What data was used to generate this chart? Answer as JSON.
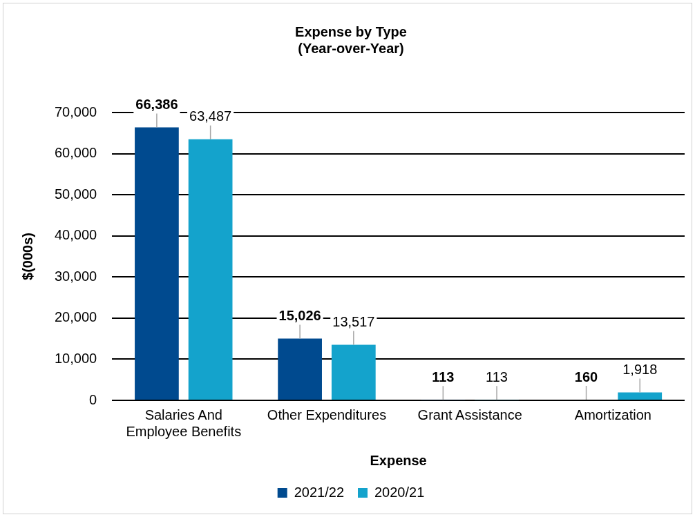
{
  "chart_data": {
    "type": "bar",
    "title": "Expense by Type\n(Year-over-Year)",
    "xlabel": "Expense",
    "ylabel": "$(000s)",
    "categories": [
      "Salaries And Employee Benefits",
      "Other Expenditures",
      "Grant Assistance",
      "Amortization"
    ],
    "series": [
      {
        "name": "2021/22",
        "color": "#004a8f",
        "values": [
          66386,
          15026,
          113,
          160
        ],
        "value_labels": [
          "66,386",
          "15,026",
          "113",
          "160"
        ]
      },
      {
        "name": "2020/21",
        "color": "#14a3cc",
        "values": [
          63487,
          13517,
          113,
          1918
        ],
        "value_labels": [
          "63,487",
          "13,517",
          "113",
          "1,918"
        ]
      }
    ],
    "ylim": [
      0,
      70000
    ],
    "yticks": [
      0,
      {
        "value": 10000,
        "label": "10,000"
      },
      {
        "value": 20000,
        "label": "20,000"
      },
      {
        "value": 30000,
        "label": "30,000"
      },
      {
        "value": 40000,
        "label": "40,000"
      },
      {
        "value": 50000,
        "label": "50,000"
      },
      {
        "value": 60000,
        "label": "60,000"
      },
      {
        "value": 70000,
        "label": "70,000"
      }
    ],
    "grid": "y",
    "legend": "bottom"
  }
}
